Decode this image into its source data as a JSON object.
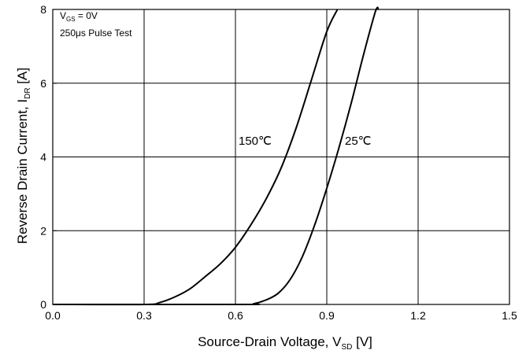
{
  "chart_data": {
    "type": "line",
    "xlabel": {
      "main": "Source-Drain Voltage, V",
      "sub": "SD",
      "unit": "  [V]"
    },
    "ylabel": {
      "main": "Reverse Drain Current, I",
      "sub": "DR",
      "unit": "  [A]"
    },
    "xlim": [
      0.0,
      1.5
    ],
    "ylim": [
      0,
      8
    ],
    "xticks": [
      "0.0",
      "0.3",
      "0.6",
      "0.9",
      "1.2",
      "1.5"
    ],
    "yticks": [
      "0",
      "2",
      "4",
      "6",
      "8"
    ],
    "grid": true,
    "annotations": {
      "line1_main": "V",
      "line1_sub": "GS",
      "line1_rest": " = 0V",
      "line2": "250μs Pulse Test"
    },
    "series": [
      {
        "name": "150℃",
        "x": [
          0.0,
          0.3,
          0.35,
          0.4,
          0.45,
          0.5,
          0.55,
          0.6,
          0.65,
          0.7,
          0.75,
          0.8,
          0.85,
          0.9,
          0.935
        ],
        "y": [
          0.0,
          0.0,
          0.05,
          0.2,
          0.42,
          0.75,
          1.1,
          1.55,
          2.15,
          2.85,
          3.7,
          4.8,
          6.1,
          7.4,
          8.0
        ]
      },
      {
        "name": "25℃",
        "x": [
          0.0,
          0.62,
          0.66,
          0.7,
          0.74,
          0.78,
          0.82,
          0.86,
          0.9,
          0.94,
          0.98,
          1.02,
          1.06,
          1.07
        ],
        "y": [
          0.0,
          0.0,
          0.02,
          0.12,
          0.3,
          0.68,
          1.3,
          2.15,
          3.15,
          4.25,
          5.45,
          6.75,
          7.95,
          8.0
        ]
      }
    ],
    "labels": [
      "150℃",
      "25℃"
    ]
  }
}
